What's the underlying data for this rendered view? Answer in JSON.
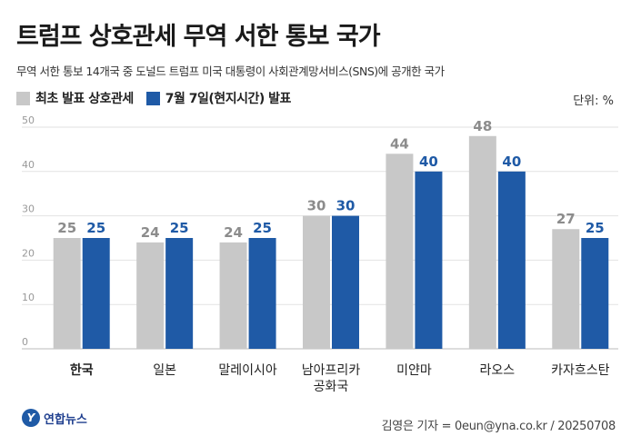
{
  "header": {
    "title": "트럼프 상호관세 무역 서한 통보 국가",
    "subtitle": "무역 서한 통보 14개국 중 도널드 트럼프 미국 대통령이 사회관계망서비스(SNS)에 공개한 국가",
    "unit": "단위: %"
  },
  "colors": {
    "initial": "#c8c8c8",
    "july7": "#1f5aa6"
  },
  "chart_data": {
    "type": "bar",
    "categories": [
      "한국",
      "일본",
      "말레이시아",
      "남아프리카\n공화국",
      "미얀마",
      "라오스",
      "카자흐스탄"
    ],
    "series": [
      {
        "name": "최초 발표 상호관세",
        "values": [
          25,
          24,
          24,
          30,
          44,
          48,
          27
        ]
      },
      {
        "name": "7월 7일(현지시간) 발표",
        "values": [
          25,
          25,
          25,
          30,
          40,
          40,
          25
        ]
      }
    ],
    "ylim": [
      0,
      50
    ],
    "yticks": [
      0,
      10,
      20,
      30,
      40,
      50
    ],
    "grid": true,
    "legend": "top-left",
    "highlight_category": "한국"
  },
  "footer": {
    "logo_text": "연합뉴스",
    "credit": "김영은 기자 = 0eun@yna.co.kr / 20250708"
  }
}
